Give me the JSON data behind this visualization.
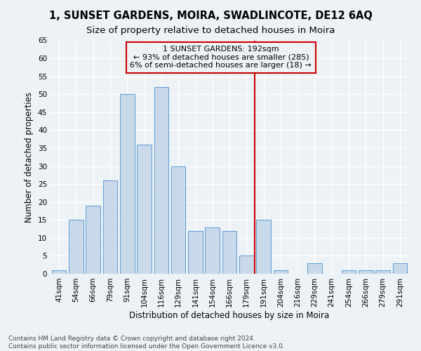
{
  "title": "1, SUNSET GARDENS, MOIRA, SWADLINCOTE, DE12 6AQ",
  "subtitle": "Size of property relative to detached houses in Moira",
  "xlabel": "Distribution of detached houses by size in Moira",
  "ylabel": "Number of detached properties",
  "footer_line1": "Contains HM Land Registry data © Crown copyright and database right 2024.",
  "footer_line2": "Contains public sector information licensed under the Open Government Licence v3.0.",
  "categories": [
    "41sqm",
    "54sqm",
    "66sqm",
    "79sqm",
    "91sqm",
    "104sqm",
    "116sqm",
    "129sqm",
    "141sqm",
    "154sqm",
    "166sqm",
    "179sqm",
    "191sqm",
    "204sqm",
    "216sqm",
    "229sqm",
    "241sqm",
    "254sqm",
    "266sqm",
    "279sqm",
    "291sqm"
  ],
  "values": [
    1,
    15,
    19,
    26,
    50,
    36,
    52,
    30,
    12,
    13,
    12,
    5,
    15,
    1,
    0,
    3,
    0,
    1,
    1,
    1,
    3
  ],
  "bar_color": "#c9d9ea",
  "bar_edge_color": "#5b9bd5",
  "property_bin_index": 12,
  "annotation_title": "1 SUNSET GARDENS: 192sqm",
  "annotation_line2": "← 93% of detached houses are smaller (285)",
  "annotation_line3": "6% of semi-detached houses are larger (18) →",
  "vline_color": "#cc0000",
  "ylim": [
    0,
    65
  ],
  "yticks": [
    0,
    5,
    10,
    15,
    20,
    25,
    30,
    35,
    40,
    45,
    50,
    55,
    60,
    65
  ],
  "background_color": "#edf2f7",
  "grid_color": "#ffffff",
  "title_fontsize": 10.5,
  "subtitle_fontsize": 9.5,
  "axis_label_fontsize": 8.5,
  "tick_fontsize": 7.5,
  "annotation_fontsize": 8,
  "footer_fontsize": 6.5
}
